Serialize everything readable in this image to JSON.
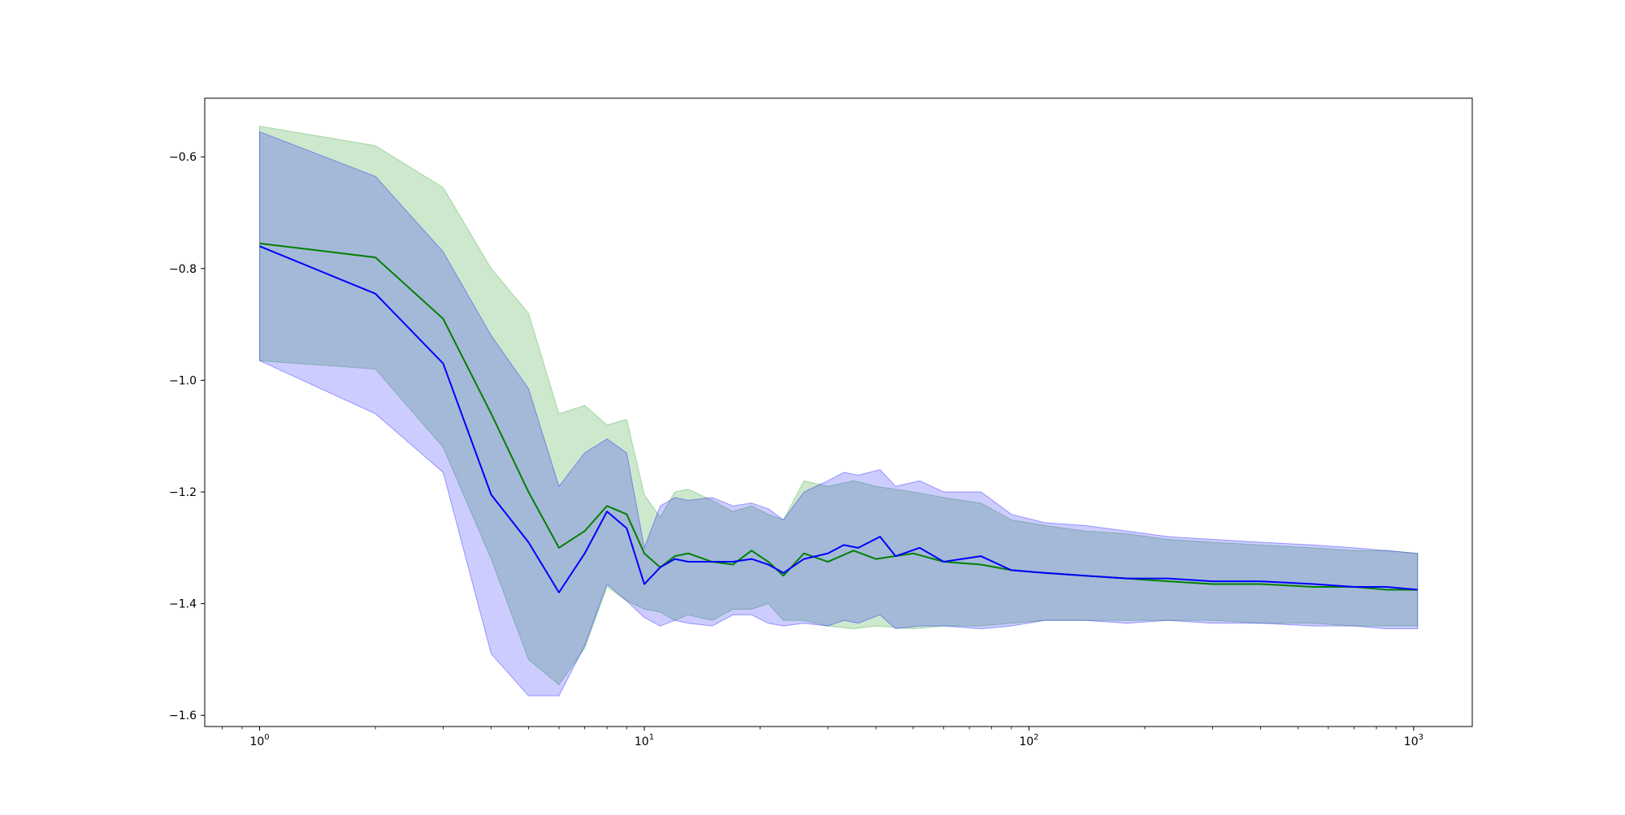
{
  "chart_data": {
    "type": "line",
    "title": "",
    "xlabel": "",
    "ylabel": "",
    "x_scale": "log",
    "xlim": [
      0.72,
      1420
    ],
    "ylim": [
      -1.62,
      -0.495
    ],
    "grid": false,
    "x_ticks": [
      {
        "value": 1,
        "mantissa": "10",
        "exponent": "0"
      },
      {
        "value": 10,
        "mantissa": "10",
        "exponent": "1"
      },
      {
        "value": 100,
        "mantissa": "10",
        "exponent": "2"
      },
      {
        "value": 1000,
        "mantissa": "10",
        "exponent": "3"
      }
    ],
    "y_ticks": [
      {
        "value": -1.6,
        "label": "−1.6"
      },
      {
        "value": -1.4,
        "label": "−1.4"
      },
      {
        "value": -1.2,
        "label": "−1.2"
      },
      {
        "value": -1.0,
        "label": "−1.0"
      },
      {
        "value": -0.8,
        "label": "−0.8"
      },
      {
        "value": -0.6,
        "label": "−0.6"
      }
    ],
    "series": [
      {
        "color": "#008000",
        "band_color": "#2ca02c",
        "band_opacity": 0.24,
        "points": [
          {
            "x": 1,
            "mean": -0.755,
            "lower": -0.965,
            "upper": -0.545
          },
          {
            "x": 2,
            "mean": -0.78,
            "lower": -0.98,
            "upper": -0.58
          },
          {
            "x": 3,
            "mean": -0.89,
            "lower": -1.12,
            "upper": -0.655
          },
          {
            "x": 4,
            "mean": -1.06,
            "lower": -1.32,
            "upper": -0.8
          },
          {
            "x": 5,
            "mean": -1.2,
            "lower": -1.5,
            "upper": -0.88
          },
          {
            "x": 6,
            "mean": -1.3,
            "lower": -1.545,
            "upper": -1.06
          },
          {
            "x": 7,
            "mean": -1.27,
            "lower": -1.48,
            "upper": -1.045
          },
          {
            "x": 8,
            "mean": -1.225,
            "lower": -1.37,
            "upper": -1.08
          },
          {
            "x": 9,
            "mean": -1.24,
            "lower": -1.395,
            "upper": -1.07
          },
          {
            "x": 10,
            "mean": -1.31,
            "lower": -1.41,
            "upper": -1.205
          },
          {
            "x": 11,
            "mean": -1.335,
            "lower": -1.415,
            "upper": -1.245
          },
          {
            "x": 12,
            "mean": -1.315,
            "lower": -1.43,
            "upper": -1.2
          },
          {
            "x": 13,
            "mean": -1.31,
            "lower": -1.42,
            "upper": -1.195
          },
          {
            "x": 15,
            "mean": -1.325,
            "lower": -1.43,
            "upper": -1.215
          },
          {
            "x": 17,
            "mean": -1.33,
            "lower": -1.41,
            "upper": -1.235
          },
          {
            "x": 19,
            "mean": -1.305,
            "lower": -1.41,
            "upper": -1.225
          },
          {
            "x": 21,
            "mean": -1.325,
            "lower": -1.4,
            "upper": -1.24
          },
          {
            "x": 23,
            "mean": -1.35,
            "lower": -1.43,
            "upper": -1.25
          },
          {
            "x": 26,
            "mean": -1.31,
            "lower": -1.43,
            "upper": -1.18
          },
          {
            "x": 30,
            "mean": -1.325,
            "lower": -1.44,
            "upper": -1.19
          },
          {
            "x": 35,
            "mean": -1.305,
            "lower": -1.445,
            "upper": -1.18
          },
          {
            "x": 40,
            "mean": -1.32,
            "lower": -1.44,
            "upper": -1.19
          },
          {
            "x": 50,
            "mean": -1.31,
            "lower": -1.445,
            "upper": -1.2
          },
          {
            "x": 60,
            "mean": -1.325,
            "lower": -1.44,
            "upper": -1.21
          },
          {
            "x": 75,
            "mean": -1.33,
            "lower": -1.44,
            "upper": -1.22
          },
          {
            "x": 90,
            "mean": -1.34,
            "lower": -1.435,
            "upper": -1.25
          },
          {
            "x": 110,
            "mean": -1.345,
            "lower": -1.43,
            "upper": -1.26
          },
          {
            "x": 140,
            "mean": -1.35,
            "lower": -1.43,
            "upper": -1.27
          },
          {
            "x": 180,
            "mean": -1.355,
            "lower": -1.43,
            "upper": -1.275
          },
          {
            "x": 230,
            "mean": -1.36,
            "lower": -1.43,
            "upper": -1.285
          },
          {
            "x": 300,
            "mean": -1.365,
            "lower": -1.43,
            "upper": -1.29
          },
          {
            "x": 400,
            "mean": -1.365,
            "lower": -1.435,
            "upper": -1.295
          },
          {
            "x": 550,
            "mean": -1.37,
            "lower": -1.435,
            "upper": -1.3
          },
          {
            "x": 700,
            "mean": -1.37,
            "lower": -1.44,
            "upper": -1.305
          },
          {
            "x": 850,
            "mean": -1.375,
            "lower": -1.44,
            "upper": -1.305
          },
          {
            "x": 1024,
            "mean": -1.375,
            "lower": -1.44,
            "upper": -1.31
          }
        ]
      },
      {
        "color": "#0000ff",
        "band_color": "#0000ff",
        "band_opacity": 0.2,
        "points": [
          {
            "x": 1,
            "mean": -0.76,
            "lower": -0.965,
            "upper": -0.555
          },
          {
            "x": 2,
            "mean": -0.845,
            "lower": -1.06,
            "upper": -0.635
          },
          {
            "x": 3,
            "mean": -0.97,
            "lower": -1.165,
            "upper": -0.77
          },
          {
            "x": 4,
            "mean": -1.205,
            "lower": -1.49,
            "upper": -0.92
          },
          {
            "x": 5,
            "mean": -1.29,
            "lower": -1.565,
            "upper": -1.015
          },
          {
            "x": 6,
            "mean": -1.38,
            "lower": -1.565,
            "upper": -1.19
          },
          {
            "x": 7,
            "mean": -1.31,
            "lower": -1.475,
            "upper": -1.13
          },
          {
            "x": 8,
            "mean": -1.235,
            "lower": -1.365,
            "upper": -1.105
          },
          {
            "x": 9,
            "mean": -1.265,
            "lower": -1.395,
            "upper": -1.13
          },
          {
            "x": 10,
            "mean": -1.365,
            "lower": -1.425,
            "upper": -1.3
          },
          {
            "x": 11,
            "mean": -1.335,
            "lower": -1.44,
            "upper": -1.225
          },
          {
            "x": 12,
            "mean": -1.32,
            "lower": -1.43,
            "upper": -1.21
          },
          {
            "x": 13,
            "mean": -1.325,
            "lower": -1.435,
            "upper": -1.215
          },
          {
            "x": 15,
            "mean": -1.325,
            "lower": -1.44,
            "upper": -1.21
          },
          {
            "x": 17,
            "mean": -1.325,
            "lower": -1.42,
            "upper": -1.225
          },
          {
            "x": 19,
            "mean": -1.32,
            "lower": -1.42,
            "upper": -1.22
          },
          {
            "x": 21,
            "mean": -1.33,
            "lower": -1.435,
            "upper": -1.23
          },
          {
            "x": 23,
            "mean": -1.345,
            "lower": -1.44,
            "upper": -1.25
          },
          {
            "x": 26,
            "mean": -1.32,
            "lower": -1.435,
            "upper": -1.2
          },
          {
            "x": 30,
            "mean": -1.31,
            "lower": -1.44,
            "upper": -1.18
          },
          {
            "x": 33,
            "mean": -1.295,
            "lower": -1.43,
            "upper": -1.165
          },
          {
            "x": 36,
            "mean": -1.3,
            "lower": -1.435,
            "upper": -1.17
          },
          {
            "x": 41,
            "mean": -1.28,
            "lower": -1.42,
            "upper": -1.16
          },
          {
            "x": 45,
            "mean": -1.315,
            "lower": -1.445,
            "upper": -1.19
          },
          {
            "x": 52,
            "mean": -1.3,
            "lower": -1.44,
            "upper": -1.18
          },
          {
            "x": 60,
            "mean": -1.325,
            "lower": -1.44,
            "upper": -1.2
          },
          {
            "x": 75,
            "mean": -1.315,
            "lower": -1.445,
            "upper": -1.2
          },
          {
            "x": 90,
            "mean": -1.34,
            "lower": -1.44,
            "upper": -1.24
          },
          {
            "x": 110,
            "mean": -1.345,
            "lower": -1.43,
            "upper": -1.255
          },
          {
            "x": 140,
            "mean": -1.35,
            "lower": -1.43,
            "upper": -1.26
          },
          {
            "x": 180,
            "mean": -1.355,
            "lower": -1.435,
            "upper": -1.27
          },
          {
            "x": 230,
            "mean": -1.355,
            "lower": -1.43,
            "upper": -1.28
          },
          {
            "x": 300,
            "mean": -1.36,
            "lower": -1.435,
            "upper": -1.285
          },
          {
            "x": 400,
            "mean": -1.36,
            "lower": -1.435,
            "upper": -1.29
          },
          {
            "x": 550,
            "mean": -1.365,
            "lower": -1.44,
            "upper": -1.295
          },
          {
            "x": 700,
            "mean": -1.37,
            "lower": -1.44,
            "upper": -1.3
          },
          {
            "x": 850,
            "mean": -1.37,
            "lower": -1.445,
            "upper": -1.305
          },
          {
            "x": 1024,
            "mean": -1.375,
            "lower": -1.445,
            "upper": -1.31
          }
        ]
      }
    ]
  }
}
